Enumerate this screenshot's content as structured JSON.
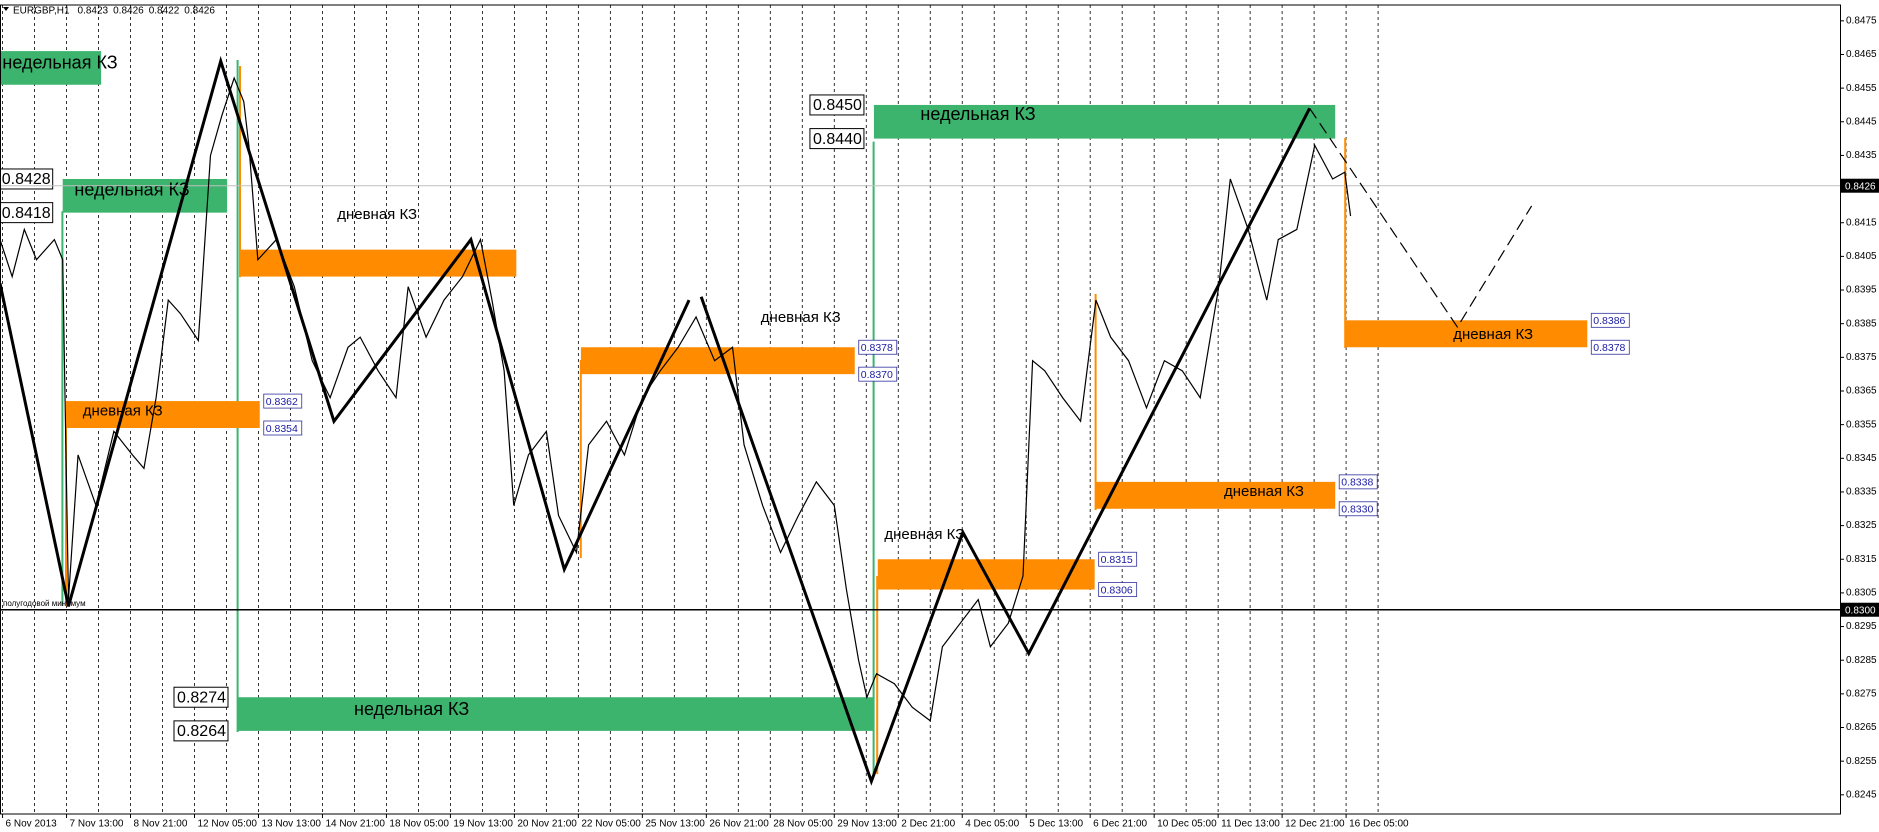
{
  "chart_data": {
    "type": "candlestick",
    "symbol": "EURGBP,H1",
    "ohlc": [
      0.8423,
      0.8426,
      0.8422,
      0.8426
    ],
    "xlim": [
      -0.04,
      28.72
    ],
    "ylim": [
      0.82393,
      0.84797
    ],
    "xticks": [
      {
        "value": 0,
        "label": "6 Nov 2013"
      },
      {
        "value": 1,
        "label": "7 Nov 13:00"
      },
      {
        "value": 2,
        "label": "8 Nov 21:00"
      },
      {
        "value": 3,
        "label": "12 Nov 05:00"
      },
      {
        "value": 4,
        "label": "13 Nov 13:00"
      },
      {
        "value": 5,
        "label": "14 Nov 21:00"
      },
      {
        "value": 6,
        "label": "18 Nov 05:00"
      },
      {
        "value": 7,
        "label": "19 Nov 13:00"
      },
      {
        "value": 8,
        "label": "20 Nov 21:00"
      },
      {
        "value": 9,
        "label": "22 Nov 05:00"
      },
      {
        "value": 10,
        "label": "25 Nov 13:00"
      },
      {
        "value": 11,
        "label": "26 Nov 21:00"
      },
      {
        "value": 12,
        "label": "28 Nov 05:00"
      },
      {
        "value": 13,
        "label": "29 Nov 13:00"
      },
      {
        "value": 14,
        "label": "2 Dec 21:00"
      },
      {
        "value": 15,
        "label": "4 Dec 05:00"
      },
      {
        "value": 16,
        "label": "5 Dec 13:00"
      },
      {
        "value": 17,
        "label": "6 Dec 21:00"
      },
      {
        "value": 18,
        "label": "10 Dec 05:00"
      },
      {
        "value": 19,
        "label": "11 Dec 13:00"
      },
      {
        "value": 20,
        "label": "12 Dec 21:00"
      },
      {
        "value": 21,
        "label": "16 Dec 05:00"
      }
    ],
    "yticks": [
      0.8475,
      0.8465,
      0.8455,
      0.8445,
      0.8435,
      0.8415,
      0.8405,
      0.8395,
      0.8385,
      0.8375,
      0.8365,
      0.8355,
      0.8345,
      0.8335,
      0.8325,
      0.8315,
      0.8305,
      0.8295,
      0.8285,
      0.8275,
      0.8265,
      0.8255,
      0.8245
    ],
    "grid": true,
    "price": {
      "color": "#000000",
      "x": [
        -0.04,
        0.15,
        0.34,
        0.53,
        0.81,
        0.94,
        1.03,
        1.18,
        1.46,
        1.74,
        2.03,
        2.21,
        2.4,
        2.59,
        2.78,
        3.06,
        3.25,
        3.43,
        3.62,
        3.77,
        3.85,
        3.99,
        4.28,
        4.56,
        4.84,
        5.12,
        5.4,
        5.59,
        5.87,
        6.15,
        6.34,
        6.62,
        6.9,
        7.19,
        7.47,
        7.65,
        7.84,
        7.99,
        8.22,
        8.5,
        8.69,
        8.97,
        9.16,
        9.44,
        9.72,
        10,
        10.28,
        10.56,
        10.84,
        11.13,
        11.41,
        11.59,
        11.88,
        12.16,
        12.44,
        12.72,
        13,
        13.19,
        13.38,
        13.51,
        13.66,
        13.94,
        14.22,
        14.5,
        14.69,
        14.97,
        15.25,
        15.44,
        15.72,
        15.95,
        16.1,
        16.29,
        16.57,
        16.85,
        17.09,
        17.32,
        17.6,
        17.88,
        18.16,
        18.44,
        18.72,
        19.01,
        19.19,
        19.47,
        19.76,
        19.94,
        20.23,
        20.51,
        20.79,
        20.98,
        21.07
      ],
      "values": [
        0.841,
        0.8399,
        0.8413,
        0.8404,
        0.841,
        0.8404,
        0.8303,
        0.8346,
        0.8331,
        0.8353,
        0.8346,
        0.8342,
        0.8363,
        0.8392,
        0.8388,
        0.838,
        0.8435,
        0.8447,
        0.8458,
        0.8451,
        0.8438,
        0.8404,
        0.841,
        0.8396,
        0.8374,
        0.8363,
        0.8378,
        0.8381,
        0.8371,
        0.8363,
        0.8396,
        0.8381,
        0.8392,
        0.8399,
        0.841,
        0.8392,
        0.8371,
        0.8331,
        0.8346,
        0.8353,
        0.8328,
        0.8317,
        0.8349,
        0.8356,
        0.8346,
        0.8363,
        0.8371,
        0.8378,
        0.8387,
        0.8374,
        0.8378,
        0.8349,
        0.8331,
        0.8317,
        0.8328,
        0.8338,
        0.8331,
        0.8306,
        0.8285,
        0.8274,
        0.8281,
        0.8278,
        0.8271,
        0.8267,
        0.8289,
        0.8296,
        0.8303,
        0.8289,
        0.8296,
        0.831,
        0.8374,
        0.8371,
        0.8363,
        0.8356,
        0.8392,
        0.8381,
        0.8374,
        0.836,
        0.8374,
        0.8371,
        0.8363,
        0.8396,
        0.8428,
        0.8413,
        0.8392,
        0.841,
        0.8413,
        0.8438,
        0.8428,
        0.843,
        0.8417
      ]
    },
    "lines": [
      {
        "style": "solid",
        "x": [
          -0.04,
          1.03,
          3.41,
          5.18,
          7.32,
          8.78,
          10.73
        ],
        "values": [
          0.8397,
          0.8301,
          0.8463,
          0.8356,
          0.841,
          0.8312,
          0.8392
        ]
      },
      {
        "style": "solid",
        "x": [
          10.92,
          13.58,
          15.01,
          16.04,
          20.43
        ],
        "values": [
          0.8393,
          0.8249,
          0.8323,
          0.8287,
          0.8449
        ]
      },
      {
        "style": "dashed",
        "x": [
          20.43,
          22.74,
          23.9
        ],
        "values": [
          0.8449,
          0.8384,
          0.842
        ]
      }
    ],
    "colors": {
      "weekly": "#3db46d",
      "daily": "#ff8c00"
    },
    "zones": [
      {
        "kind": "weekly",
        "caption": "недельная КЗ",
        "x": [
          -0.04,
          1.54
        ],
        "values": [
          0.8456,
          0.8466
        ]
      },
      {
        "kind": "weekly",
        "caption": "недельная КЗ",
        "x": [
          0.94,
          3.51
        ],
        "values": [
          0.8418,
          0.8428
        ],
        "price_tags": true
      },
      {
        "kind": "daily",
        "caption": "дневная КЗ",
        "x": [
          0.99,
          4.02
        ],
        "values": [
          0.8354,
          0.8362
        ],
        "price_tags": true
      },
      {
        "kind": "daily",
        "caption": "дневная КЗ",
        "x": [
          3.71,
          8.03
        ],
        "values": [
          0.8399,
          0.8407
        ]
      },
      {
        "kind": "weekly",
        "caption": "недельная КЗ",
        "x": [
          3.68,
          13.62
        ],
        "values": [
          0.8264,
          0.8274
        ],
        "price_tags": true
      },
      {
        "kind": "daily",
        "caption": "дневная КЗ",
        "x": [
          9.04,
          13.32
        ],
        "values": [
          0.837,
          0.8378
        ],
        "value_labels": [
          "0.8370",
          "0.8378"
        ],
        "price_tags": true
      },
      {
        "kind": "weekly",
        "caption": "недельная КЗ",
        "x": [
          13.62,
          20.83
        ],
        "values": [
          0.844,
          0.845
        ],
        "value_labels": [
          "0.8440",
          "0.8450"
        ],
        "price_tags": true
      },
      {
        "kind": "daily",
        "caption": "дневная КЗ",
        "x": [
          13.68,
          17.07
        ],
        "values": [
          0.8306,
          0.8315
        ],
        "price_tags": true
      },
      {
        "kind": "daily",
        "caption": "дневная КЗ",
        "x": [
          17.09,
          20.83
        ],
        "values": [
          0.833,
          0.8338
        ],
        "value_labels": [
          "0.8330",
          "0.8338"
        ],
        "price_tags": true
      },
      {
        "kind": "daily",
        "caption": "дневная КЗ",
        "x": [
          20.99,
          24.77
        ],
        "values": [
          0.8378,
          0.8386
        ],
        "price_tags": true
      }
    ],
    "hlines": {
      "values": [
        0.8426,
        0.83
      ],
      "value_labels": [
        "0.8426",
        "0.8300"
      ],
      "colors": [
        "#c0c0c0",
        "#000000"
      ]
    },
    "annotation": "полугодовой минимум"
  }
}
